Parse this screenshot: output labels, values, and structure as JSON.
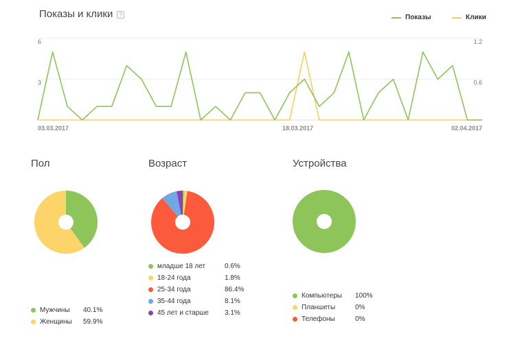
{
  "header": {
    "title": "Показы и клики",
    "help_glyph": "?"
  },
  "legend": [
    {
      "name": "Показы",
      "color": "#8dc55a"
    },
    {
      "name": "Клики",
      "color": "#f7d05e"
    }
  ],
  "chart_data": [
    {
      "type": "line",
      "title": "Показы и клики",
      "x_tick_labels": [
        "03.03.2017",
        "18.03.2017",
        "02.04.2017"
      ],
      "y_left_ticks": [
        "6",
        "3"
      ],
      "y_right_ticks": [
        "1.2",
        "0.6"
      ],
      "ylim_left": [
        0,
        6
      ],
      "ylim_right": [
        0,
        1.2
      ],
      "grid": true,
      "legend_position": "top-right",
      "series": [
        {
          "name": "Показы",
          "axis": "left",
          "color": "#8dc55a",
          "values": [
            0,
            5,
            1,
            0,
            1,
            1,
            4,
            3,
            1,
            1,
            5,
            0,
            1,
            0,
            2,
            2,
            0,
            2,
            3,
            1,
            2,
            5,
            0,
            2,
            3,
            0,
            5,
            3,
            4,
            0,
            0
          ]
        },
        {
          "name": "Клики",
          "axis": "right",
          "color": "#f7d05e",
          "values": [
            0,
            0,
            0,
            0,
            0,
            0,
            0,
            0,
            0,
            0,
            0,
            0,
            0,
            0,
            0,
            0,
            0,
            0,
            1,
            0,
            0,
            0,
            0,
            0,
            0,
            0,
            0,
            0,
            0,
            0,
            0
          ]
        }
      ]
    },
    {
      "type": "pie",
      "title": "Пол",
      "slices": [
        {
          "label": "Мужчины",
          "value": 40.1,
          "display": "40.1%",
          "color": "#8dc55a"
        },
        {
          "label": "Женщины",
          "value": 59.9,
          "display": "59.9%",
          "color": "#fdd46a"
        }
      ]
    },
    {
      "type": "pie",
      "title": "Возраст",
      "slices": [
        {
          "label": "младше 18 лет",
          "value": 0.6,
          "display": "0.6%",
          "color": "#8dc55a"
        },
        {
          "label": "18-24 года",
          "value": 1.8,
          "display": "1.8%",
          "color": "#fdd46a"
        },
        {
          "label": "25-34 года",
          "value": 86.4,
          "display": "86.4%",
          "color": "#fb5a3c"
        },
        {
          "label": "35-44 года",
          "value": 8.1,
          "display": "8.1%",
          "color": "#6fa9e2"
        },
        {
          "label": "45 лет и старше",
          "value": 3.1,
          "display": "3.1%",
          "color": "#8f3fb9"
        }
      ]
    },
    {
      "type": "pie",
      "title": "Устройства",
      "slices": [
        {
          "label": "Компьютеры",
          "value": 100,
          "display": "100%",
          "color": "#8dc55a"
        },
        {
          "label": "Планшеты",
          "value": 0,
          "display": "0%",
          "color": "#fdd46a"
        },
        {
          "label": "Телефоны",
          "value": 0,
          "display": "0%",
          "color": "#fb5a3c"
        }
      ]
    }
  ]
}
